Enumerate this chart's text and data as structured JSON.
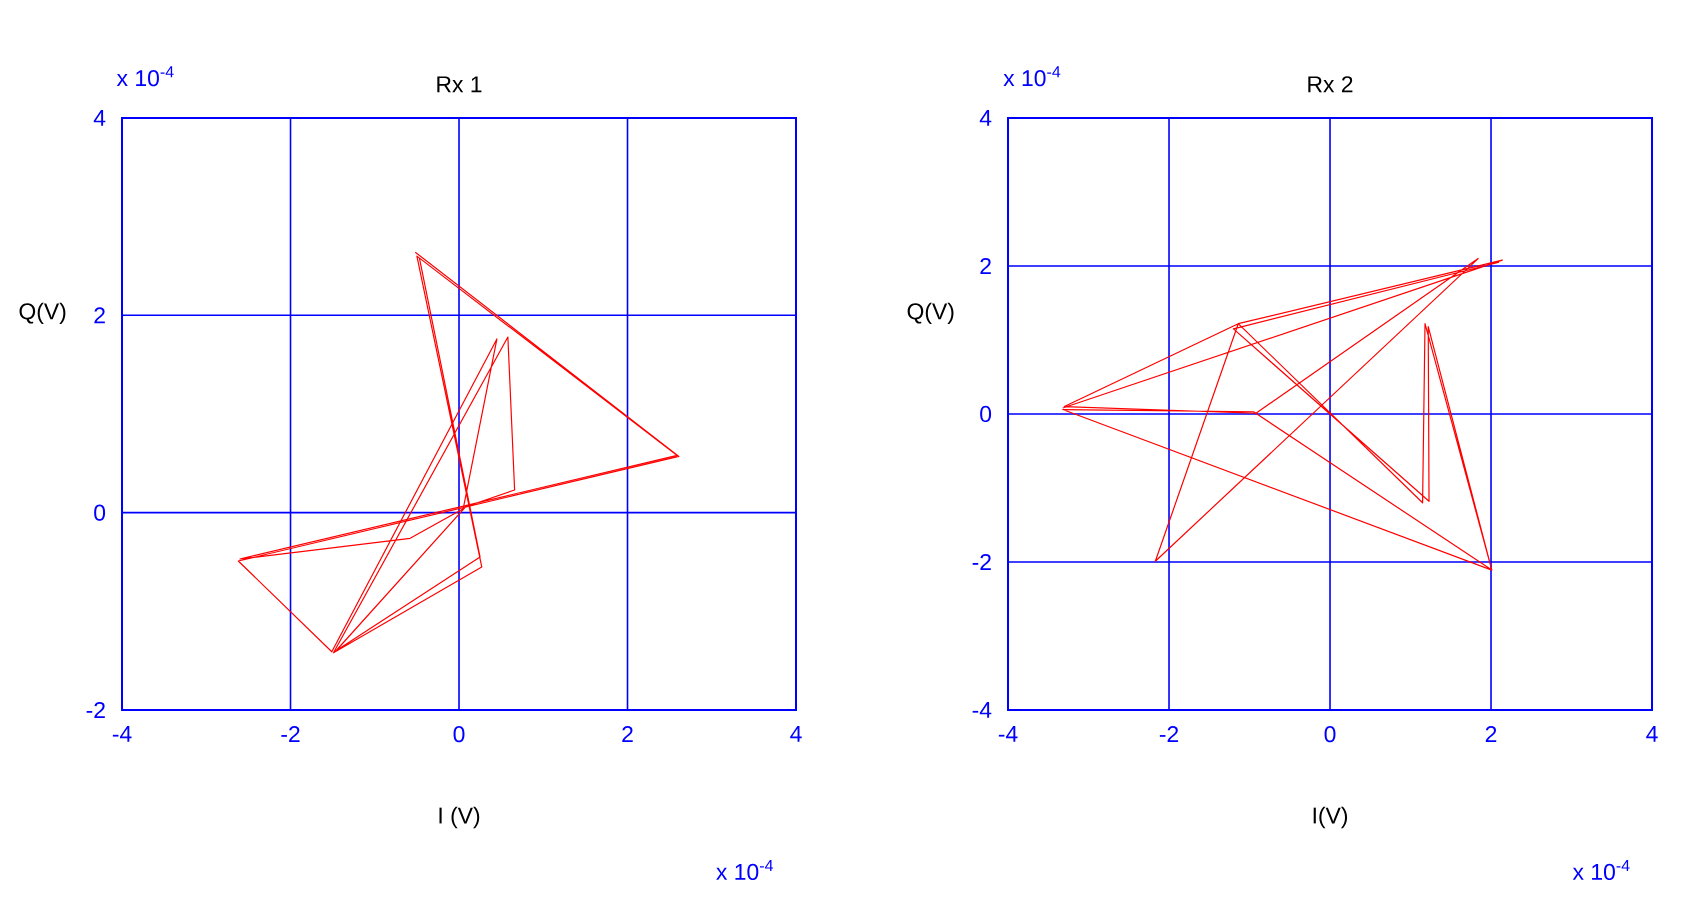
{
  "chart_data": [
    {
      "type": "line",
      "title": "Rx 1",
      "xlabel": "I (V)",
      "ylabel": "Q(V)",
      "annotations": [
        "x 10$^{-4}$",
        "x 10$^{-4}$"
      ],
      "xlim": [
        -4,
        4
      ],
      "ylim": [
        -2,
        4
      ],
      "xticks": [
        -4,
        -2,
        0,
        2,
        4
      ],
      "yticks": [
        -2,
        0,
        2,
        4
      ],
      "grid": true,
      "series": [
        {
          "color": "#ff0000",
          "x": [
            -0.52,
            2.61,
            -2.62,
            -1.51,
            0.45,
            0.05,
            -0.58,
            -2.6,
            2.59,
            -0.5,
            0.27,
            -1.49,
            0.58,
            0.66,
            0.08,
            -1.46,
            0.25,
            -0.47
          ],
          "values": [
            2.64,
            0.57,
            -0.49,
            -1.41,
            1.76,
            0.04,
            -0.26,
            -0.47,
            0.58,
            2.6,
            -0.55,
            -1.42,
            1.78,
            0.23,
            0.06,
            -1.4,
            -0.45,
            2.58
          ]
        }
      ]
    },
    {
      "type": "line",
      "title": "Rx 2",
      "xlabel": "I(V)",
      "ylabel": "Q(V)",
      "annotations": [
        "x 10$^{-4}$",
        "x 10$^{-4}$"
      ],
      "xlim": [
        -4,
        4
      ],
      "ylim": [
        -4,
        4
      ],
      "xticks": [
        -4,
        -2,
        0,
        2,
        4
      ],
      "yticks": [
        -4,
        -2,
        0,
        2,
        4
      ],
      "grid": true,
      "series": [
        {
          "color": "#ff0000",
          "x": [
            -3.32,
            2.14,
            -1.14,
            -3.3,
            -0.92,
            1.84,
            -2.17,
            -1.14,
            1.15,
            1.18,
            2.01,
            -3.32,
            -0.95,
            2.01,
            1.22,
            1.23,
            -1.2,
            2.1
          ],
          "values": [
            0.08,
            2.08,
            1.22,
            0.1,
            0.01,
            2.1,
            -1.99,
            1.22,
            -1.2,
            1.22,
            -2.11,
            0.06,
            0.03,
            -2.11,
            1.18,
            -1.18,
            1.15,
            2.05
          ]
        }
      ]
    }
  ]
}
